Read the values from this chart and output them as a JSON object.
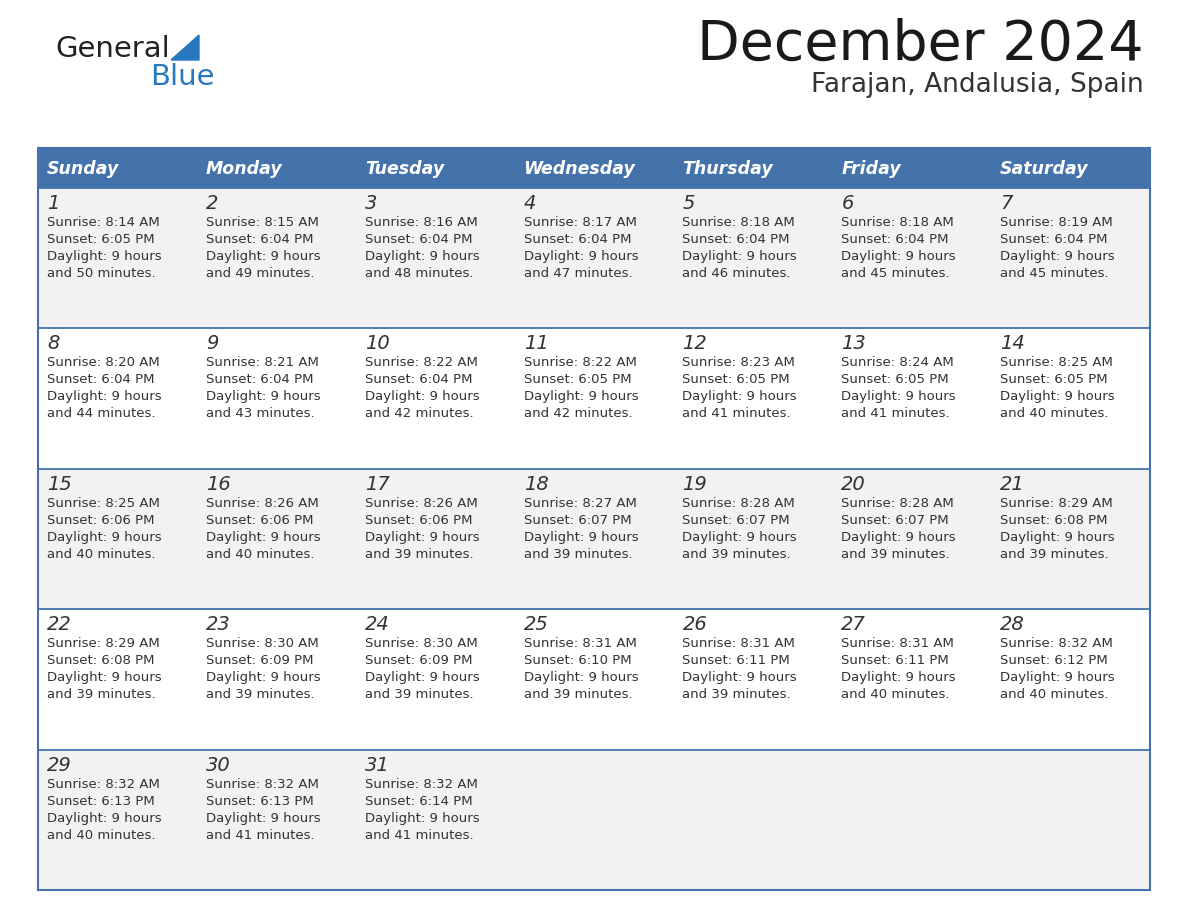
{
  "title": "December 2024",
  "subtitle": "Farajan, Andalusia, Spain",
  "header_color": "#4472aa",
  "header_text_color": "#ffffff",
  "row_bg_odd": "#ffffff",
  "row_bg_even": "#f2f2f2",
  "border_color": "#4472aa",
  "text_color": "#333333",
  "days_of_week": [
    "Sunday",
    "Monday",
    "Tuesday",
    "Wednesday",
    "Thursday",
    "Friday",
    "Saturday"
  ],
  "weeks": [
    [
      {
        "day": 1,
        "sunrise": "8:14 AM",
        "sunset": "6:05 PM",
        "daylight": "9 hours\nand 50 minutes."
      },
      {
        "day": 2,
        "sunrise": "8:15 AM",
        "sunset": "6:04 PM",
        "daylight": "9 hours\nand 49 minutes."
      },
      {
        "day": 3,
        "sunrise": "8:16 AM",
        "sunset": "6:04 PM",
        "daylight": "9 hours\nand 48 minutes."
      },
      {
        "day": 4,
        "sunrise": "8:17 AM",
        "sunset": "6:04 PM",
        "daylight": "9 hours\nand 47 minutes."
      },
      {
        "day": 5,
        "sunrise": "8:18 AM",
        "sunset": "6:04 PM",
        "daylight": "9 hours\nand 46 minutes."
      },
      {
        "day": 6,
        "sunrise": "8:18 AM",
        "sunset": "6:04 PM",
        "daylight": "9 hours\nand 45 minutes."
      },
      {
        "day": 7,
        "sunrise": "8:19 AM",
        "sunset": "6:04 PM",
        "daylight": "9 hours\nand 45 minutes."
      }
    ],
    [
      {
        "day": 8,
        "sunrise": "8:20 AM",
        "sunset": "6:04 PM",
        "daylight": "9 hours\nand 44 minutes."
      },
      {
        "day": 9,
        "sunrise": "8:21 AM",
        "sunset": "6:04 PM",
        "daylight": "9 hours\nand 43 minutes."
      },
      {
        "day": 10,
        "sunrise": "8:22 AM",
        "sunset": "6:04 PM",
        "daylight": "9 hours\nand 42 minutes."
      },
      {
        "day": 11,
        "sunrise": "8:22 AM",
        "sunset": "6:05 PM",
        "daylight": "9 hours\nand 42 minutes."
      },
      {
        "day": 12,
        "sunrise": "8:23 AM",
        "sunset": "6:05 PM",
        "daylight": "9 hours\nand 41 minutes."
      },
      {
        "day": 13,
        "sunrise": "8:24 AM",
        "sunset": "6:05 PM",
        "daylight": "9 hours\nand 41 minutes."
      },
      {
        "day": 14,
        "sunrise": "8:25 AM",
        "sunset": "6:05 PM",
        "daylight": "9 hours\nand 40 minutes."
      }
    ],
    [
      {
        "day": 15,
        "sunrise": "8:25 AM",
        "sunset": "6:06 PM",
        "daylight": "9 hours\nand 40 minutes."
      },
      {
        "day": 16,
        "sunrise": "8:26 AM",
        "sunset": "6:06 PM",
        "daylight": "9 hours\nand 40 minutes."
      },
      {
        "day": 17,
        "sunrise": "8:26 AM",
        "sunset": "6:06 PM",
        "daylight": "9 hours\nand 39 minutes."
      },
      {
        "day": 18,
        "sunrise": "8:27 AM",
        "sunset": "6:07 PM",
        "daylight": "9 hours\nand 39 minutes."
      },
      {
        "day": 19,
        "sunrise": "8:28 AM",
        "sunset": "6:07 PM",
        "daylight": "9 hours\nand 39 minutes."
      },
      {
        "day": 20,
        "sunrise": "8:28 AM",
        "sunset": "6:07 PM",
        "daylight": "9 hours\nand 39 minutes."
      },
      {
        "day": 21,
        "sunrise": "8:29 AM",
        "sunset": "6:08 PM",
        "daylight": "9 hours\nand 39 minutes."
      }
    ],
    [
      {
        "day": 22,
        "sunrise": "8:29 AM",
        "sunset": "6:08 PM",
        "daylight": "9 hours\nand 39 minutes."
      },
      {
        "day": 23,
        "sunrise": "8:30 AM",
        "sunset": "6:09 PM",
        "daylight": "9 hours\nand 39 minutes."
      },
      {
        "day": 24,
        "sunrise": "8:30 AM",
        "sunset": "6:09 PM",
        "daylight": "9 hours\nand 39 minutes."
      },
      {
        "day": 25,
        "sunrise": "8:31 AM",
        "sunset": "6:10 PM",
        "daylight": "9 hours\nand 39 minutes."
      },
      {
        "day": 26,
        "sunrise": "8:31 AM",
        "sunset": "6:11 PM",
        "daylight": "9 hours\nand 39 minutes."
      },
      {
        "day": 27,
        "sunrise": "8:31 AM",
        "sunset": "6:11 PM",
        "daylight": "9 hours\nand 40 minutes."
      },
      {
        "day": 28,
        "sunrise": "8:32 AM",
        "sunset": "6:12 PM",
        "daylight": "9 hours\nand 40 minutes."
      }
    ],
    [
      {
        "day": 29,
        "sunrise": "8:32 AM",
        "sunset": "6:13 PM",
        "daylight": "9 hours\nand 40 minutes."
      },
      {
        "day": 30,
        "sunrise": "8:32 AM",
        "sunset": "6:13 PM",
        "daylight": "9 hours\nand 41 minutes."
      },
      {
        "day": 31,
        "sunrise": "8:32 AM",
        "sunset": "6:14 PM",
        "daylight": "9 hours\nand 41 minutes."
      },
      null,
      null,
      null,
      null
    ]
  ],
  "logo_general_color": "#222222",
  "logo_blue_color": "#2878c0",
  "logo_triangle_color": "#2878c0"
}
